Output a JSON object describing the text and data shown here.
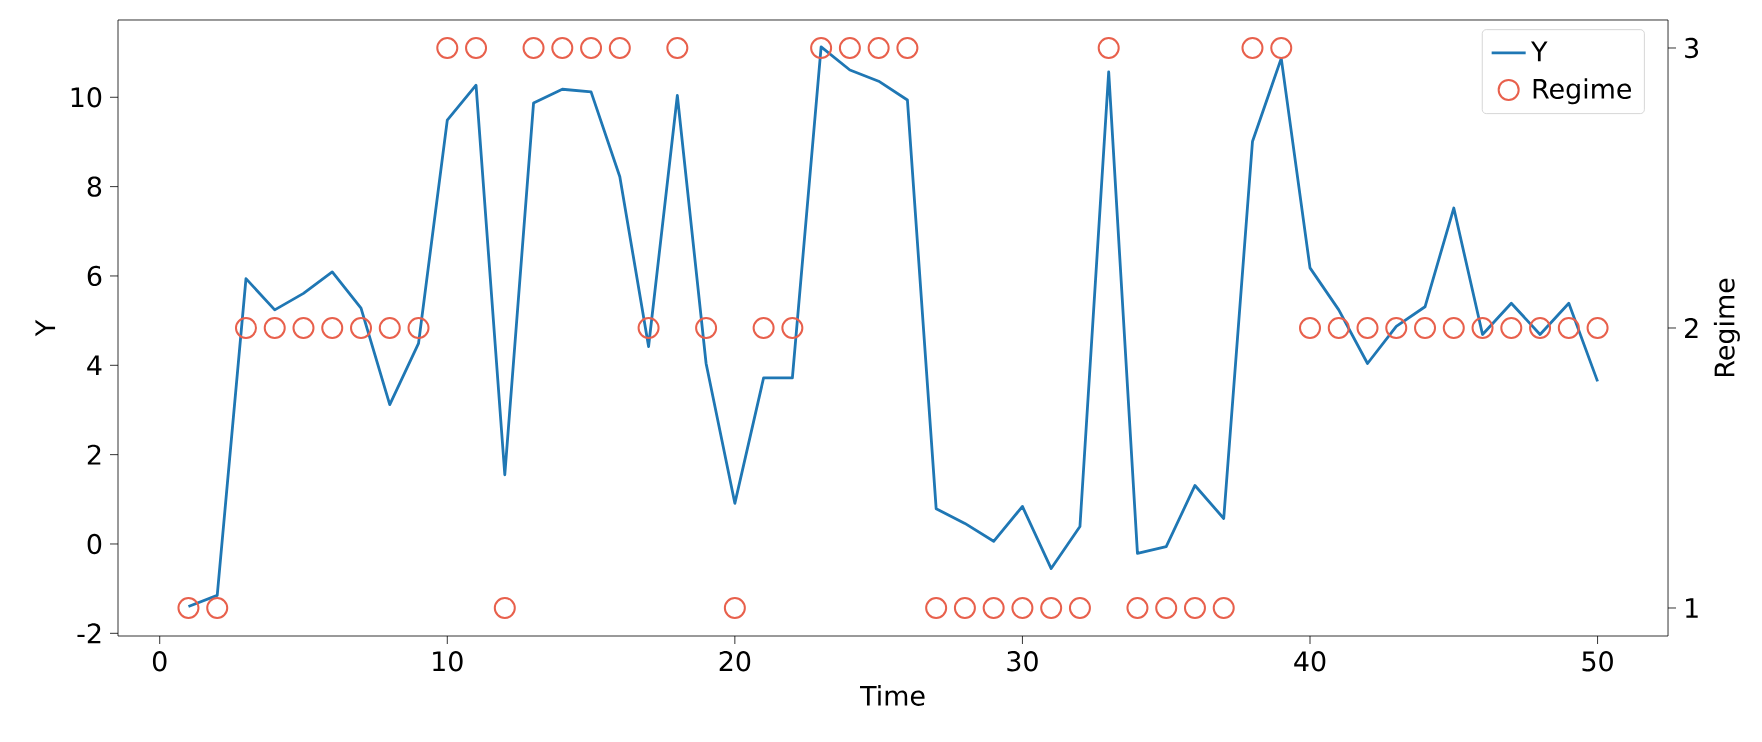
{
  "chart_data": {
    "type": "line",
    "xlabel": "Time",
    "ylabel": "Y",
    "y2label": "Regime",
    "x": [
      1,
      2,
      3,
      4,
      5,
      6,
      7,
      8,
      9,
      10,
      11,
      12,
      13,
      14,
      15,
      16,
      17,
      18,
      19,
      20,
      21,
      22,
      23,
      24,
      25,
      26,
      27,
      28,
      29,
      30,
      31,
      32,
      33,
      34,
      35,
      36,
      37,
      38,
      39,
      40,
      41,
      42,
      43,
      44,
      45,
      46,
      47,
      48,
      49,
      50
    ],
    "series": [
      {
        "name": "Y",
        "color": "#1f77b4",
        "marker": "none",
        "values": [
          -1.4,
          -1.15,
          5.94,
          5.24,
          5.61,
          6.09,
          5.28,
          3.12,
          4.49,
          9.49,
          10.27,
          1.55,
          9.87,
          10.18,
          10.12,
          8.22,
          4.42,
          10.04,
          4.04,
          0.91,
          3.72,
          3.72,
          11.13,
          10.61,
          10.36,
          9.94,
          0.79,
          0.46,
          0.06,
          0.84,
          -0.55,
          0.39,
          10.57,
          -0.21,
          -0.06,
          1.31,
          0.57,
          9.01,
          10.87,
          6.18,
          5.24,
          4.04,
          4.87,
          5.31,
          7.52,
          4.69,
          5.39,
          4.69,
          5.39,
          3.64
        ]
      },
      {
        "name": "Regime",
        "type": "scatter",
        "axis": "y2",
        "color": "#e8604c",
        "marker": "circle",
        "values": [
          1,
          1,
          2,
          2,
          2,
          2,
          2,
          2,
          2,
          3,
          3,
          1,
          3,
          3,
          3,
          3,
          2,
          3,
          2,
          1,
          2,
          2,
          3,
          3,
          3,
          3,
          1,
          1,
          1,
          1,
          1,
          1,
          3,
          1,
          1,
          1,
          1,
          3,
          3,
          2,
          2,
          2,
          2,
          2,
          2,
          2,
          2,
          2,
          2,
          2
        ]
      }
    ],
    "xlim": [
      -1.45,
      52.45
    ],
    "ylim": [
      -2.06,
      11.73
    ],
    "y2lim": [
      0.9,
      3.1
    ],
    "xticks": [
      0,
      10,
      20,
      30,
      40,
      50
    ],
    "yticks": [
      -2,
      0,
      2,
      4,
      6,
      8,
      10
    ],
    "y2ticks": [
      1,
      2,
      3
    ],
    "grid": false,
    "legend": "top right"
  }
}
